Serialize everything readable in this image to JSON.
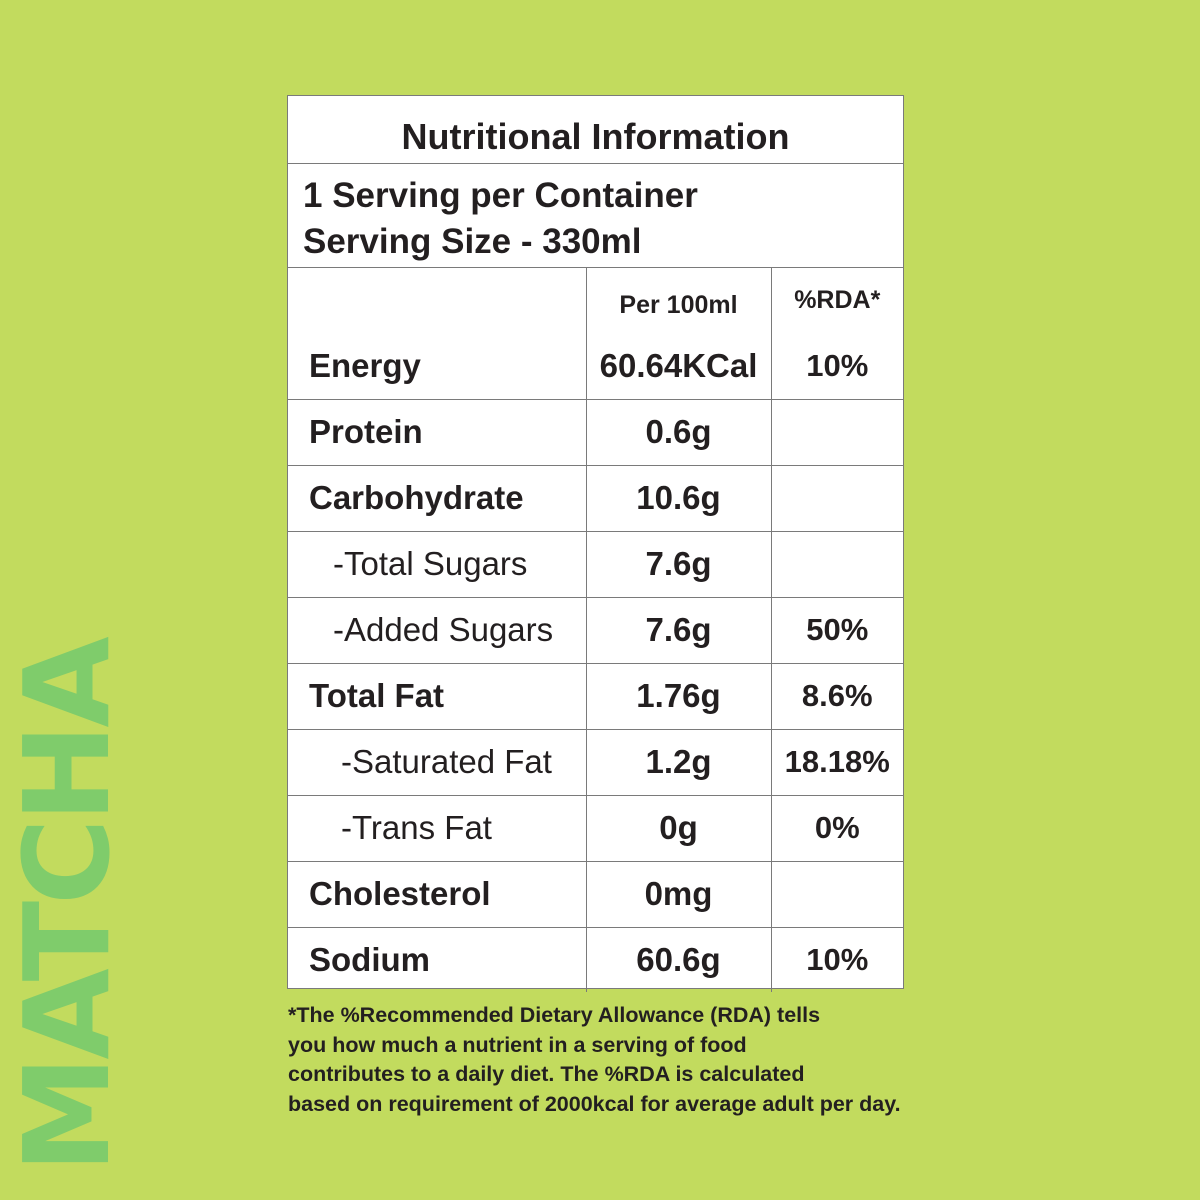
{
  "brand": {
    "side_text": "MATCHA",
    "side_color": "#7fcc6b",
    "background": "#c2db5e"
  },
  "label": {
    "title": "Nutritional Information",
    "servings_per_container": "1 Serving per Container",
    "serving_size": "Serving Size - 330ml",
    "columns": {
      "nutrient": "",
      "per_100ml": "Per 100ml",
      "rda": "%RDA*"
    },
    "rows": [
      {
        "nutrient": "Energy",
        "per_100ml": "60.64KCal",
        "rda": "10%"
      },
      {
        "nutrient": "Protein",
        "per_100ml": "0.6g",
        "rda": ""
      },
      {
        "nutrient": "Carbohydrate",
        "per_100ml": "10.6g",
        "rda": ""
      },
      {
        "nutrient": "-Total Sugars",
        "per_100ml": "7.6g",
        "rda": ""
      },
      {
        "nutrient": "-Added Sugars",
        "per_100ml": "7.6g",
        "rda": "50%"
      },
      {
        "nutrient": "Total Fat",
        "per_100ml": "1.76g",
        "rda": "8.6%"
      },
      {
        "nutrient": "-Saturated Fat",
        "per_100ml": "1.2g",
        "rda": "18.18%"
      },
      {
        "nutrient": "-Trans Fat",
        "per_100ml": "0g",
        "rda": "0%"
      },
      {
        "nutrient": "Cholesterol",
        "per_100ml": "0mg",
        "rda": ""
      },
      {
        "nutrient": "Sodium",
        "per_100ml": "60.6g",
        "rda": "10%"
      }
    ]
  },
  "footnote": {
    "lines": [
      "*The %Recommended Dietary Allowance (RDA) tells",
      "you how much a nutrient in a serving of food",
      "contributes to a daily diet. The %RDA is calculated",
      "based on requirement of 2000kcal for average adult per day."
    ]
  }
}
